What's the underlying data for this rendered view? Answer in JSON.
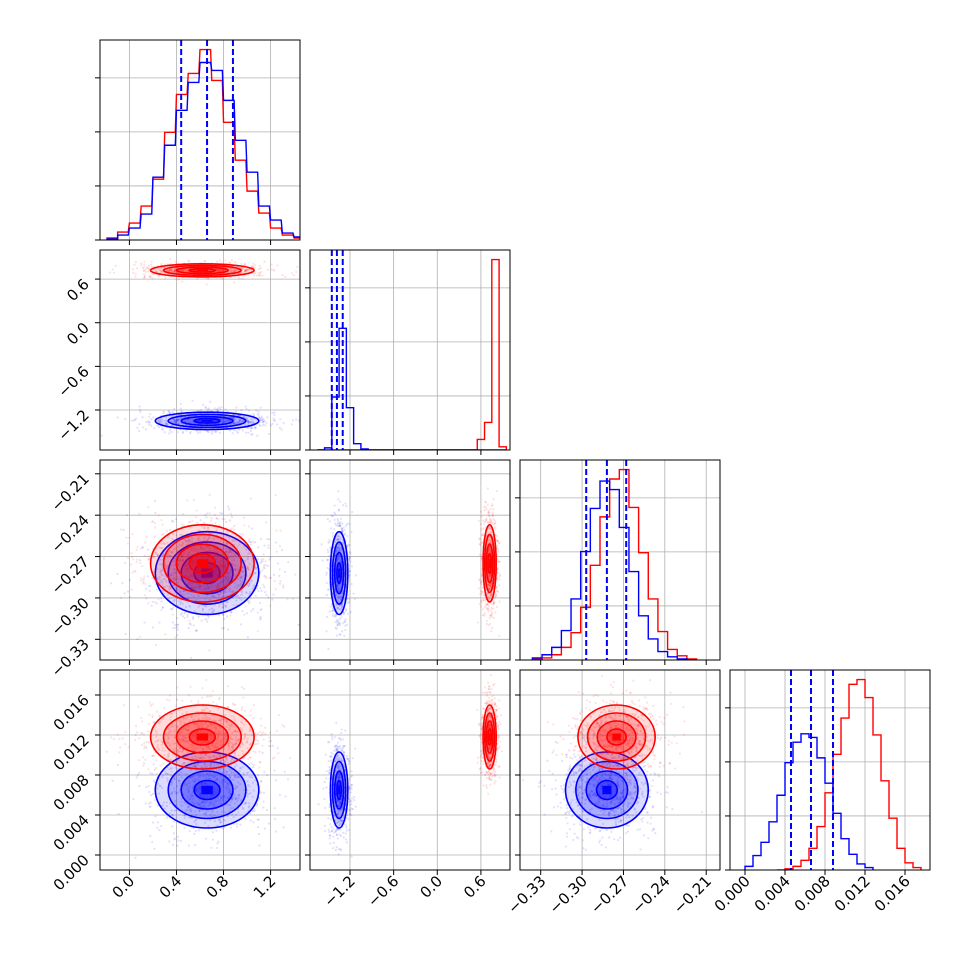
{
  "chart_data": {
    "type": "corner",
    "grid": true,
    "colors": {
      "series_a": "#ff0000",
      "series_b": "#0000ff",
      "grid": "#b0b0b0"
    },
    "parameters": [
      {
        "range": [
          -0.25,
          1.45
        ],
        "ticks": [
          0.0,
          0.4,
          0.8,
          1.2
        ],
        "tick_labels": [
          "0.0",
          "0.4",
          "0.8",
          "1.2"
        ]
      },
      {
        "range": [
          -1.75,
          1.0
        ],
        "ticks": [
          -1.2,
          -0.6,
          0.0,
          0.6
        ],
        "tick_labels": [
          "−1.2",
          "−0.6",
          "0.0",
          "0.6"
        ]
      },
      {
        "range": [
          -0.345,
          -0.2
        ],
        "ticks": [
          -0.33,
          -0.3,
          -0.27,
          -0.24,
          -0.21
        ],
        "tick_labels": [
          "−0.33",
          "−0.30",
          "−0.27",
          "−0.24",
          "−0.21"
        ]
      },
      {
        "range": [
          -0.0015,
          0.0185
        ],
        "ticks": [
          0.0,
          0.004,
          0.008,
          0.012,
          0.016
        ],
        "tick_labels": [
          "0.000",
          "0.004",
          "0.008",
          "0.012",
          "0.016"
        ]
      }
    ],
    "series": [
      {
        "name": "",
        "color": "#0000ff",
        "means": [
          0.66,
          -1.35,
          -0.282,
          0.0065
        ],
        "sigmas": [
          0.22,
          0.06,
          0.015,
          0.0019
        ],
        "quantile_lines": [
          [
            0.44,
            0.66,
            0.88
          ],
          [
            -1.45,
            -1.38,
            -1.3
          ],
          [
            -0.297,
            -0.282,
            -0.268
          ],
          [
            0.0046,
            0.0066,
            0.0088
          ]
        ]
      },
      {
        "name": "",
        "color": "#ff0000",
        "means": [
          0.62,
          0.72,
          -0.275,
          0.0118
        ],
        "sigmas": [
          0.22,
          0.045,
          0.014,
          0.0016
        ],
        "quantile_lines": []
      }
    ],
    "histograms": [
      {
        "param": 0,
        "blue": [
          [
            -0.19,
            0.1
          ],
          [
            -0.1,
            0.5
          ],
          [
            0.0,
            1.2
          ],
          [
            0.1,
            2.6
          ],
          [
            0.2,
            6.3
          ],
          [
            0.3,
            9.5
          ],
          [
            0.4,
            13.0
          ],
          [
            0.5,
            15.8
          ],
          [
            0.6,
            17.8
          ],
          [
            0.7,
            17.0
          ],
          [
            0.8,
            14.0
          ],
          [
            0.9,
            10.0
          ],
          [
            1.0,
            6.8
          ],
          [
            1.1,
            3.4
          ],
          [
            1.2,
            2.0
          ],
          [
            1.3,
            0.7
          ],
          [
            1.4,
            0.3
          ]
        ],
        "red": [
          [
            -0.19,
            0.2
          ],
          [
            -0.1,
            0.8
          ],
          [
            0.0,
            1.7
          ],
          [
            0.1,
            3.4
          ],
          [
            0.2,
            6.1
          ],
          [
            0.3,
            10.8
          ],
          [
            0.4,
            14.6
          ],
          [
            0.5,
            16.7
          ],
          [
            0.6,
            19.1
          ],
          [
            0.7,
            16.0
          ],
          [
            0.8,
            11.8
          ],
          [
            0.9,
            8.0
          ],
          [
            1.0,
            4.9
          ],
          [
            1.1,
            2.7
          ],
          [
            1.2,
            1.2
          ],
          [
            1.3,
            0.5
          ],
          [
            1.4,
            0.2
          ]
        ]
      },
      {
        "param": 1,
        "blue": [
          [
            -1.65,
            0.0
          ],
          [
            -1.55,
            0.2
          ],
          [
            -1.45,
            5.0
          ],
          [
            -1.35,
            11.5
          ],
          [
            -1.25,
            4.0
          ],
          [
            -1.15,
            0.6
          ],
          [
            -1.05,
            0.1
          ],
          [
            -0.95,
            0.0
          ],
          [
            0.35,
            0.0
          ],
          [
            0.45,
            0.0
          ],
          [
            0.55,
            0.0
          ],
          [
            0.65,
            0.0
          ],
          [
            0.75,
            0.0
          ],
          [
            0.85,
            0.0
          ]
        ],
        "red": [
          [
            -1.65,
            0.0
          ],
          [
            -1.55,
            0.0
          ],
          [
            -1.45,
            0.0
          ],
          [
            -1.35,
            0.0
          ],
          [
            -1.25,
            0.0
          ],
          [
            -1.15,
            0.0
          ],
          [
            -1.05,
            0.0
          ],
          [
            -0.95,
            0.0
          ],
          [
            0.35,
            0.0
          ],
          [
            0.45,
            0.0
          ],
          [
            0.55,
            1.0
          ],
          [
            0.65,
            2.6
          ],
          [
            0.75,
            18.0
          ],
          [
            0.85,
            0.3
          ]
        ]
      },
      {
        "param": 2,
        "blue": [
          [
            -0.336,
            0.2
          ],
          [
            -0.329,
            0.5
          ],
          [
            -0.322,
            1.2
          ],
          [
            -0.315,
            2.8
          ],
          [
            -0.308,
            5.8
          ],
          [
            -0.301,
            10.3
          ],
          [
            -0.294,
            14.4
          ],
          [
            -0.287,
            17.0
          ],
          [
            -0.28,
            16.2
          ],
          [
            -0.273,
            12.6
          ],
          [
            -0.266,
            8.4
          ],
          [
            -0.259,
            4.2
          ],
          [
            -0.252,
            2.0
          ],
          [
            -0.245,
            0.8
          ],
          [
            -0.238,
            0.3
          ],
          [
            -0.231,
            0.1
          ]
        ],
        "red": [
          [
            -0.336,
            0.1
          ],
          [
            -0.329,
            0.2
          ],
          [
            -0.322,
            0.5
          ],
          [
            -0.315,
            1.2
          ],
          [
            -0.308,
            2.6
          ],
          [
            -0.301,
            5.0
          ],
          [
            -0.294,
            9.0
          ],
          [
            -0.287,
            13.6
          ],
          [
            -0.28,
            17.2
          ],
          [
            -0.273,
            18.1
          ],
          [
            -0.266,
            14.5
          ],
          [
            -0.259,
            10.2
          ],
          [
            -0.252,
            5.8
          ],
          [
            -0.245,
            2.7
          ],
          [
            -0.238,
            1.0
          ],
          [
            -0.231,
            0.4
          ],
          [
            -0.224,
            0.1
          ]
        ]
      },
      {
        "param": 3,
        "blue": [
          [
            0.0,
            0.3
          ],
          [
            0.0008,
            1.2
          ],
          [
            0.0016,
            2.3
          ],
          [
            0.0024,
            4.0
          ],
          [
            0.0032,
            6.2
          ],
          [
            0.004,
            8.9
          ],
          [
            0.0048,
            10.6
          ],
          [
            0.0056,
            11.3
          ],
          [
            0.0064,
            11.0
          ],
          [
            0.0072,
            9.3
          ],
          [
            0.008,
            7.2
          ],
          [
            0.0088,
            4.7
          ],
          [
            0.0096,
            2.6
          ],
          [
            0.0104,
            1.3
          ],
          [
            0.0112,
            0.5
          ],
          [
            0.012,
            0.2
          ]
        ],
        "red": [
          [
            0.0032,
            0.0
          ],
          [
            0.004,
            0.1
          ],
          [
            0.0048,
            0.3
          ],
          [
            0.0056,
            0.8
          ],
          [
            0.0064,
            1.8
          ],
          [
            0.0072,
            3.6
          ],
          [
            0.008,
            6.4
          ],
          [
            0.0088,
            9.6
          ],
          [
            0.0096,
            12.6
          ],
          [
            0.0104,
            15.4
          ],
          [
            0.0112,
            15.8
          ],
          [
            0.012,
            14.3
          ],
          [
            0.0128,
            11.2
          ],
          [
            0.0136,
            7.4
          ],
          [
            0.0144,
            4.3
          ],
          [
            0.0152,
            1.8
          ],
          [
            0.016,
            0.6
          ],
          [
            0.0168,
            0.2
          ]
        ]
      }
    ]
  }
}
